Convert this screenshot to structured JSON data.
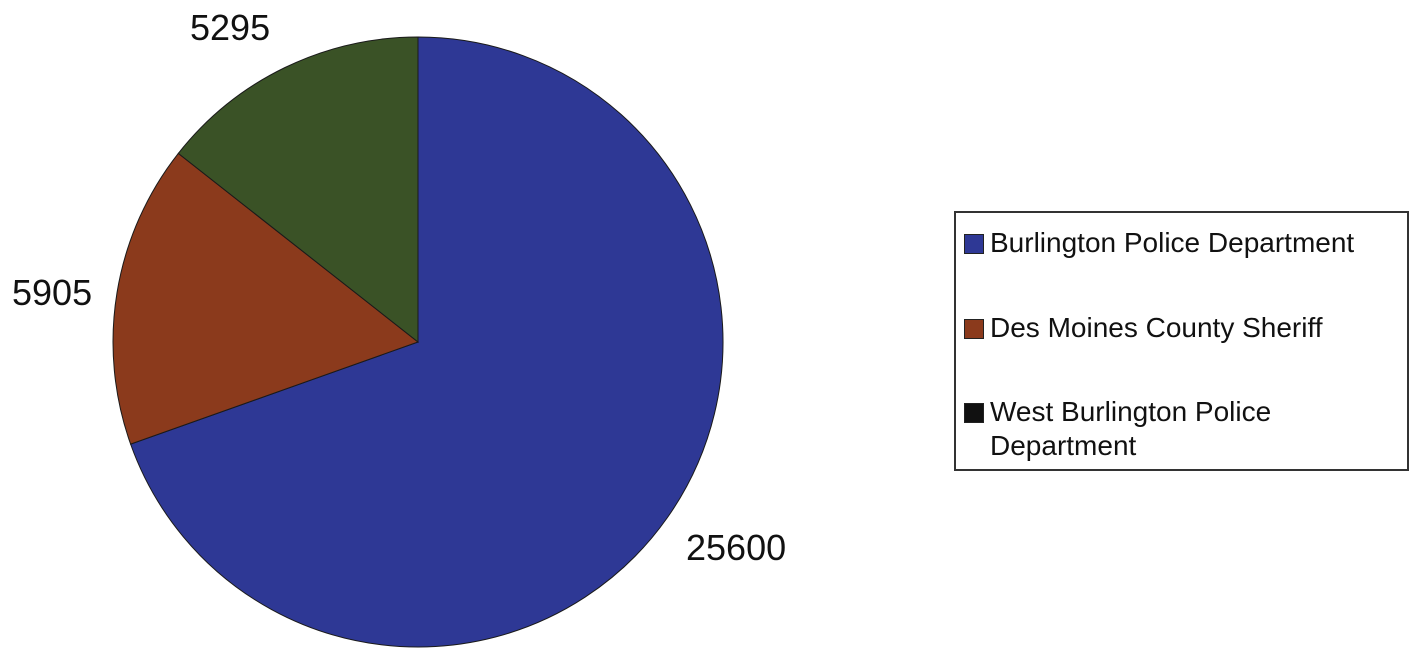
{
  "chart_data": {
    "type": "pie",
    "title": "",
    "categories": [
      "Burlington Police Department",
      "Des Moines County Sheriff",
      "West Burlington Police Department"
    ],
    "values": [
      25600,
      5905,
      5295
    ],
    "data_labels": [
      "25600",
      "5905",
      "5295"
    ],
    "colors": [
      "#2e3895",
      "#8b3a1c",
      "#3a5226"
    ],
    "legend_colors": [
      "#2e3895",
      "#8b3a1c",
      "#111111"
    ],
    "legend_position": "right"
  }
}
